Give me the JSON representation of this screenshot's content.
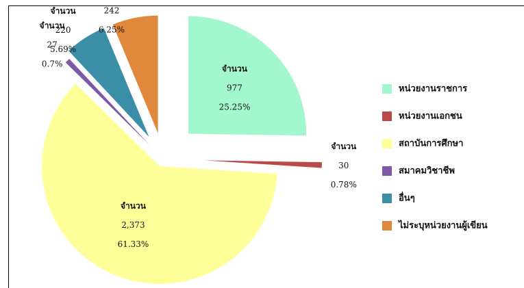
{
  "chart_data": {
    "type": "pie",
    "categories": [
      "หน่วยงานราชการ",
      "หน่วยงานเอกชน",
      "สถาบันการศึกษา",
      "สมาคมวิชาชีพ",
      "อื่นๆ",
      "ไม่ระบุหน่วยงานผู้เขียน"
    ],
    "values": [
      977,
      30,
      2373,
      27,
      220,
      242
    ],
    "value_labels": [
      "977",
      "30",
      "2,373",
      "27",
      "220",
      "242"
    ],
    "percent_labels": [
      "25.25%",
      "0.78%",
      "61.33%",
      "0.7%",
      "5.69%",
      "6.25%"
    ],
    "label_title": "จำนวน",
    "colors": [
      "#a3f7cc",
      "#b94a48",
      "#ffff99",
      "#7e5aa6",
      "#3a8ea6",
      "#e0893c"
    ],
    "legend": "right"
  }
}
